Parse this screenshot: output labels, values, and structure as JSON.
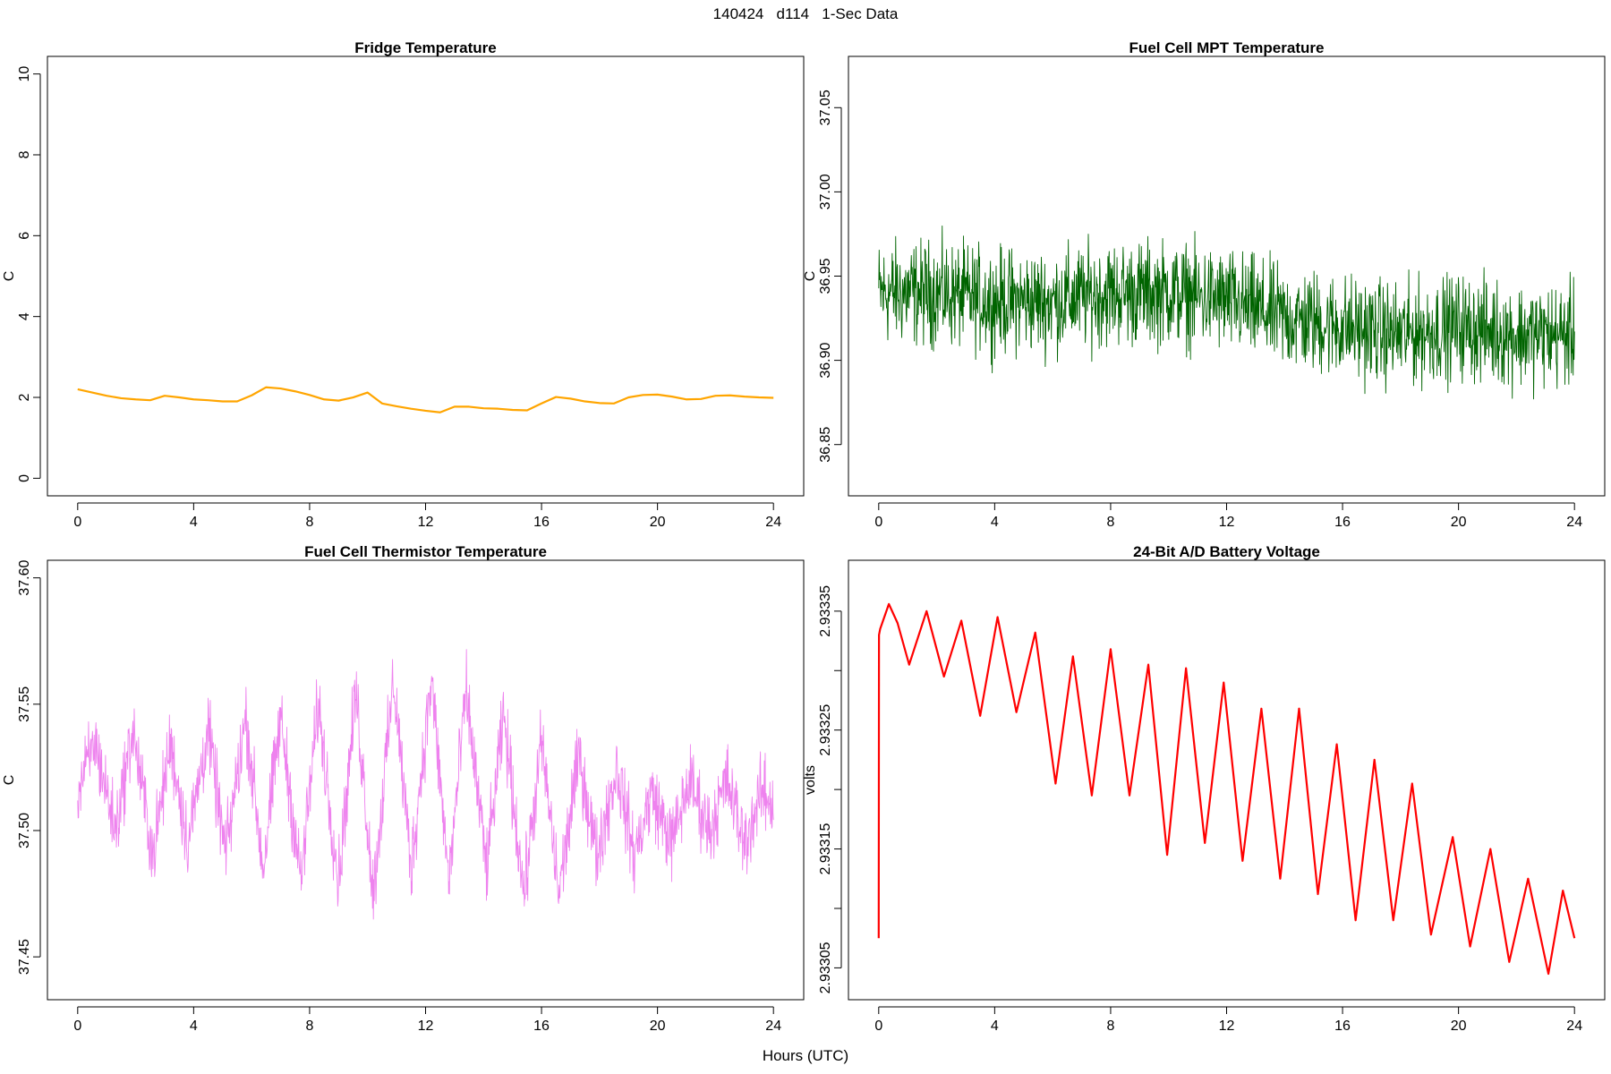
{
  "figure": {
    "title": "140424   d114   1-Sec Data",
    "xlabel": "Hours (UTC)"
  },
  "chart_data": [
    {
      "type": "line",
      "title": "Fridge Temperature",
      "xlabel": "",
      "ylabel": "C",
      "color": "#FFA500",
      "xlim": [
        0,
        24
      ],
      "ylim": [
        0,
        10
      ],
      "xticks": [
        0,
        4,
        8,
        12,
        16,
        20,
        24
      ],
      "yticks": [
        0,
        2,
        4,
        6,
        8,
        10
      ],
      "ytick_labels": [
        "0",
        "2",
        "4",
        "6",
        "8",
        "10"
      ],
      "noise": 0,
      "x": [
        0,
        0.5,
        1,
        1.5,
        2,
        2.5,
        3,
        3.5,
        4,
        4.5,
        5,
        5.5,
        6,
        6.5,
        7,
        7.5,
        8,
        8.5,
        9,
        9.5,
        10,
        10.5,
        11,
        11.5,
        12,
        12.5,
        13,
        13.5,
        14,
        14.5,
        15,
        15.5,
        16,
        16.5,
        17,
        17.5,
        18,
        18.5,
        19,
        19.5,
        20,
        20.5,
        21,
        21.5,
        22,
        22.5,
        23,
        23.5,
        24
      ],
      "y": [
        2.2,
        2.12,
        2.04,
        1.98,
        1.95,
        1.93,
        2.04,
        2.0,
        1.95,
        1.93,
        1.9,
        1.9,
        2.05,
        2.25,
        2.22,
        2.15,
        2.06,
        1.95,
        1.92,
        2.0,
        2.12,
        1.85,
        1.78,
        1.72,
        1.67,
        1.63,
        1.77,
        1.77,
        1.73,
        1.72,
        1.69,
        1.68,
        1.85,
        2.01,
        1.97,
        1.9,
        1.86,
        1.85,
        2.0,
        2.06,
        2.07,
        2.02,
        1.95,
        1.96,
        2.04,
        2.05,
        2.02,
        2.0,
        1.99
      ]
    },
    {
      "type": "line",
      "title": "Fuel Cell MPT Temperature",
      "xlabel": "",
      "ylabel": "C",
      "color": "#006400",
      "xlim": [
        0,
        24
      ],
      "ylim": [
        36.83,
        37.07
      ],
      "xticks": [
        0,
        4,
        8,
        12,
        16,
        20,
        24
      ],
      "yticks": [
        36.85,
        36.9,
        36.95,
        37.0,
        37.05
      ],
      "ytick_labels": [
        "36.85",
        "36.90",
        "36.95",
        "37.00",
        "37.05"
      ],
      "noise": 0.045,
      "x": [
        0,
        2,
        4,
        6,
        8,
        10,
        12,
        14,
        16,
        18,
        20,
        22,
        24
      ],
      "y": [
        36.94,
        36.94,
        36.935,
        36.935,
        36.94,
        36.94,
        36.935,
        36.925,
        36.92,
        36.915,
        36.92,
        36.915,
        36.915
      ]
    },
    {
      "type": "line",
      "title": "Fuel Cell Thermistor Temperature",
      "xlabel": "",
      "ylabel": "C",
      "color": "#EE82EE",
      "xlim": [
        0,
        24
      ],
      "ylim": [
        37.44,
        37.6
      ],
      "xticks": [
        0,
        4,
        8,
        12,
        16,
        20,
        24
      ],
      "yticks": [
        37.45,
        37.5,
        37.55,
        37.6
      ],
      "ytick_labels": [
        "37.45",
        "37.50",
        "37.55",
        "37.60"
      ],
      "noise": 0.022,
      "x": [
        0,
        0.6,
        1.3,
        1.9,
        2.6,
        3.2,
        3.8,
        4.5,
        5.1,
        5.8,
        6.4,
        7.0,
        7.7,
        8.3,
        9.0,
        9.6,
        10.2,
        10.9,
        11.5,
        12.2,
        12.8,
        13.4,
        14.1,
        14.7,
        15.4,
        16.0,
        16.6,
        17.3,
        17.9,
        18.6,
        19.2,
        19.8,
        20.5,
        21.1,
        21.8,
        22.4,
        23.0,
        23.6,
        24
      ],
      "y": [
        37.515,
        37.535,
        37.5,
        37.54,
        37.49,
        37.535,
        37.495,
        37.54,
        37.49,
        37.545,
        37.485,
        37.545,
        37.48,
        37.55,
        37.48,
        37.555,
        37.475,
        37.56,
        37.485,
        37.56,
        37.48,
        37.555,
        37.485,
        37.545,
        37.475,
        37.535,
        37.475,
        37.53,
        37.49,
        37.525,
        37.49,
        37.515,
        37.495,
        37.52,
        37.5,
        37.52,
        37.495,
        37.515,
        37.51
      ]
    },
    {
      "type": "line",
      "title": "24-Bit A/D Battery Voltage",
      "xlabel": "",
      "ylabel": "volts",
      "color": "#FF0000",
      "xlim": [
        0,
        24
      ],
      "ylim": [
        2.933038,
        2.933378
      ],
      "xticks": [
        0,
        4,
        8,
        12,
        16,
        20,
        24
      ],
      "yticks": [
        2.93305,
        2.93315,
        2.93325,
        2.93335
      ],
      "ytick_labels": [
        "2.93305",
        "2.93315",
        "2.93325",
        "2.93335"
      ],
      "minor_yticks": [
        2.9331,
        2.9332,
        2.9333
      ],
      "noise": 0,
      "x": [
        0,
        0.01,
        0.05,
        0.35,
        0.65,
        1.05,
        1.65,
        2.25,
        2.85,
        3.5,
        4.1,
        4.75,
        5.4,
        6.1,
        6.7,
        7.35,
        8.0,
        8.65,
        9.3,
        9.95,
        10.6,
        11.25,
        11.9,
        12.55,
        13.2,
        13.85,
        14.5,
        15.15,
        15.8,
        16.45,
        17.1,
        17.75,
        18.4,
        19.05,
        19.8,
        20.4,
        21.1,
        21.75,
        22.4,
        23.1,
        23.6,
        24
      ],
      "y": [
        2.933075,
        2.93333,
        2.933335,
        2.933356,
        2.93334,
        2.933305,
        2.93335,
        2.933295,
        2.933342,
        2.933262,
        2.933345,
        2.933265,
        2.933332,
        2.933205,
        2.933312,
        2.933195,
        2.933318,
        2.933195,
        2.933305,
        2.933145,
        2.933302,
        2.933155,
        2.93329,
        2.93314,
        2.933268,
        2.933125,
        2.933268,
        2.933112,
        2.933238,
        2.93309,
        2.933225,
        2.93309,
        2.933205,
        2.933078,
        2.93316,
        2.933068,
        2.93315,
        2.933055,
        2.933125,
        2.933045,
        2.933115,
        2.933075
      ]
    }
  ]
}
